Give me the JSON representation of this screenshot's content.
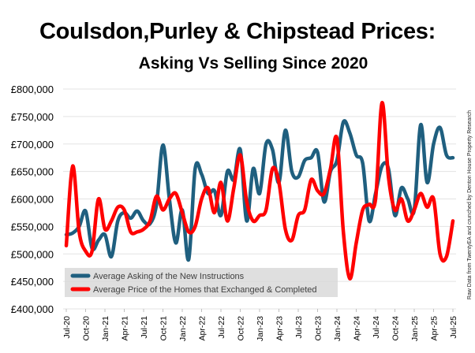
{
  "chart_data": {
    "type": "line",
    "title": "Coulsdon,Purley & Chipstead Prices:",
    "subtitle": "Asking Vs Selling Since 2020",
    "source_note": "Raw Data from TwentyEA and crunched by Denton House Property Research",
    "xlabel": "",
    "ylabel": "",
    "ylim": [
      400000,
      800000
    ],
    "y_ticks": [
      "£400,000",
      "£450,000",
      "£500,000",
      "£550,000",
      "£600,000",
      "£650,000",
      "£700,000",
      "£750,000",
      "£800,000"
    ],
    "x_tick_labels": [
      "Jul-20",
      "Oct-20",
      "Jan-21",
      "Apr-21",
      "Jul-21",
      "Oct-21",
      "Jan-22",
      "Apr-22",
      "Jul-22",
      "Oct-22",
      "Jan-23",
      "Apr-23",
      "Jul-23",
      "Oct-23",
      "Jan-24",
      "Apr-24",
      "Jul-24",
      "Oct-24",
      "Jan-25",
      "Apr-25",
      "Jul-25"
    ],
    "x_range": [
      "Jul-20",
      "Jul-25"
    ],
    "x_frequency": "monthly",
    "grid": "horizontal",
    "legend_position": "bottom-left",
    "series": [
      {
        "name": "Average Asking of the New Instructions",
        "color": "#1f5f7f",
        "values": [
          535000,
          538000,
          550000,
          578000,
          510000,
          525000,
          535000,
          495000,
          560000,
          575000,
          565000,
          578000,
          560000,
          555000,
          590000,
          698000,
          600000,
          520000,
          580000,
          490000,
          655000,
          645000,
          610000,
          615000,
          570000,
          650000,
          635000,
          690000,
          560000,
          655000,
          610000,
          700000,
          690000,
          630000,
          725000,
          650000,
          640000,
          670000,
          675000,
          685000,
          595000,
          650000,
          670000,
          740000,
          720000,
          680000,
          665000,
          560000,
          610000,
          660000,
          655000,
          570000,
          620000,
          600000,
          580000,
          735000,
          630000,
          700000,
          730000,
          680000,
          675000
        ]
      },
      {
        "name": "Average Price of the Homes that Exchanged & Completed",
        "color": "#ff0000",
        "values": [
          515000,
          660000,
          540000,
          505000,
          505000,
          600000,
          545000,
          560000,
          585000,
          580000,
          540000,
          540000,
          545000,
          560000,
          605000,
          580000,
          600000,
          610000,
          575000,
          540000,
          550000,
          600000,
          620000,
          575000,
          630000,
          560000,
          620000,
          680000,
          595000,
          560000,
          570000,
          580000,
          655000,
          630000,
          545000,
          525000,
          570000,
          580000,
          635000,
          615000,
          610000,
          655000,
          710000,
          540000,
          455000,
          520000,
          580000,
          590000,
          600000,
          775000,
          640000,
          580000,
          600000,
          560000,
          580000,
          610000,
          585000,
          600000,
          500000,
          495000,
          560000
        ]
      }
    ]
  }
}
